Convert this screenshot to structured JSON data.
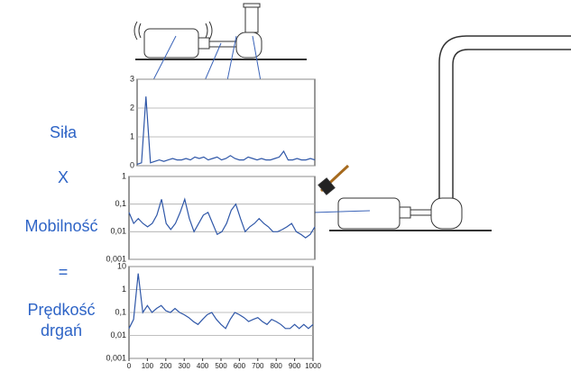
{
  "labels": {
    "force": "Siła",
    "times": "X",
    "mobility": "Mobilność",
    "equals": "=",
    "velocity_1": "Prędkość",
    "velocity_2": "drgań"
  },
  "chart_data": [
    {
      "type": "line",
      "color": "#2f57a8",
      "grid": true,
      "yscale": "linear",
      "x": [
        0,
        25,
        50,
        75,
        100,
        125,
        150,
        175,
        200,
        225,
        250,
        275,
        300,
        325,
        350,
        375,
        400,
        425,
        450,
        475,
        500,
        525,
        550,
        575,
        600,
        625,
        650,
        675,
        700,
        725,
        750,
        775,
        800,
        825,
        850,
        875,
        900,
        925,
        950,
        975,
        1000
      ],
      "values": [
        0.05,
        0.1,
        2.4,
        0.1,
        0.15,
        0.2,
        0.15,
        0.2,
        0.25,
        0.2,
        0.2,
        0.25,
        0.2,
        0.3,
        0.25,
        0.3,
        0.2,
        0.25,
        0.3,
        0.2,
        0.25,
        0.35,
        0.25,
        0.2,
        0.2,
        0.3,
        0.25,
        0.2,
        0.25,
        0.2,
        0.2,
        0.25,
        0.3,
        0.5,
        0.2,
        0.2,
        0.25,
        0.2,
        0.2,
        0.25,
        0.2
      ],
      "xlim": [
        0,
        1000
      ],
      "ylim": [
        0,
        3
      ],
      "yticks": [
        0,
        1,
        2,
        3
      ]
    },
    {
      "type": "line",
      "color": "#2f57a8",
      "grid": true,
      "yscale": "log",
      "x": [
        0,
        25,
        50,
        75,
        100,
        125,
        150,
        175,
        200,
        225,
        250,
        275,
        300,
        325,
        350,
        375,
        400,
        425,
        450,
        475,
        500,
        525,
        550,
        575,
        600,
        625,
        650,
        675,
        700,
        725,
        750,
        775,
        800,
        825,
        850,
        875,
        900,
        925,
        950,
        975,
        1000
      ],
      "values": [
        0.05,
        0.02,
        0.03,
        0.02,
        0.015,
        0.02,
        0.04,
        0.15,
        0.02,
        0.012,
        0.02,
        0.05,
        0.15,
        0.03,
        0.01,
        0.02,
        0.04,
        0.05,
        0.02,
        0.008,
        0.01,
        0.02,
        0.06,
        0.1,
        0.03,
        0.01,
        0.015,
        0.02,
        0.03,
        0.02,
        0.015,
        0.01,
        0.01,
        0.012,
        0.015,
        0.02,
        0.01,
        0.008,
        0.006,
        0.008,
        0.015
      ],
      "xlim": [
        0,
        1000
      ],
      "ylim": [
        0.001,
        1
      ],
      "yticks": [
        1,
        {
          "value": 0.1,
          "label": "0,1"
        },
        {
          "value": 0.01,
          "label": "0,01"
        },
        {
          "value": 0.001,
          "label": "0,001"
        }
      ]
    },
    {
      "type": "line",
      "color": "#2f57a8",
      "grid": true,
      "yscale": "log",
      "x": [
        0,
        25,
        50,
        75,
        100,
        125,
        150,
        175,
        200,
        225,
        250,
        275,
        300,
        325,
        350,
        375,
        400,
        425,
        450,
        475,
        500,
        525,
        550,
        575,
        600,
        625,
        650,
        675,
        700,
        725,
        750,
        775,
        800,
        825,
        850,
        875,
        900,
        925,
        950,
        975,
        1000
      ],
      "values": [
        0.02,
        0.05,
        5,
        0.1,
        0.2,
        0.1,
        0.15,
        0.2,
        0.12,
        0.1,
        0.15,
        0.1,
        0.08,
        0.06,
        0.04,
        0.03,
        0.05,
        0.08,
        0.1,
        0.05,
        0.03,
        0.02,
        0.05,
        0.1,
        0.08,
        0.06,
        0.04,
        0.05,
        0.06,
        0.04,
        0.03,
        0.05,
        0.04,
        0.03,
        0.02,
        0.02,
        0.03,
        0.02,
        0.03,
        0.02,
        0.03
      ],
      "xlim": [
        0,
        1000
      ],
      "ylim": [
        0.001,
        10
      ],
      "yticks": [
        10,
        1,
        {
          "value": 0.1,
          "label": "0,1"
        },
        {
          "value": 0.01,
          "label": "0,01"
        },
        {
          "value": 0.001,
          "label": "0,001"
        }
      ],
      "xticks": [
        0,
        100,
        200,
        300,
        400,
        500,
        600,
        700,
        800,
        900,
        1000
      ]
    }
  ]
}
